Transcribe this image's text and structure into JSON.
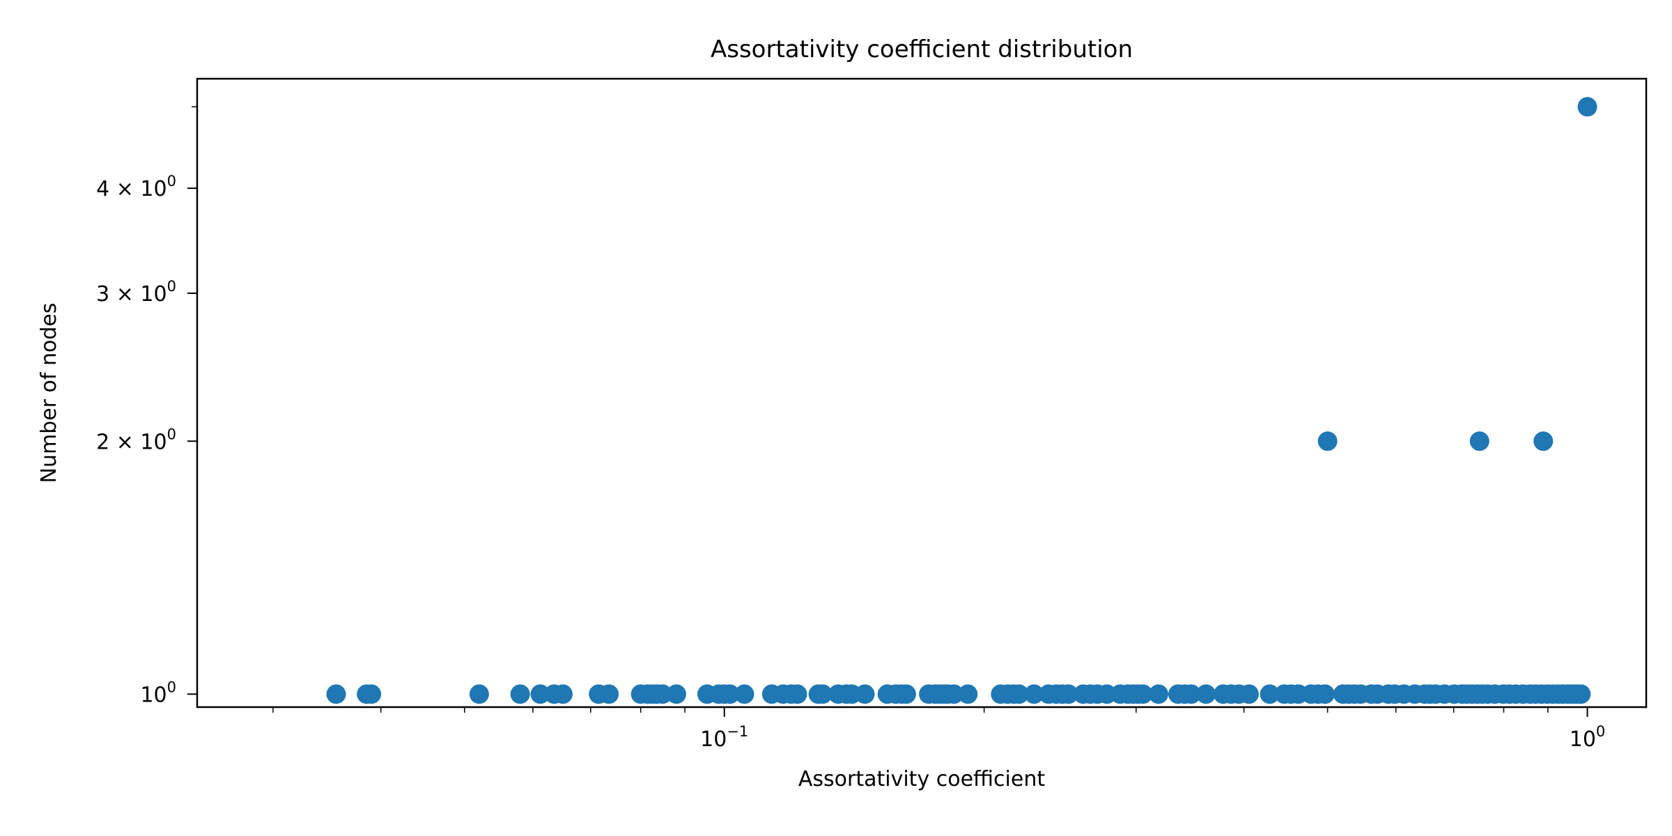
{
  "chart_data": {
    "type": "scatter",
    "title": "Assortativity coefficient distribution",
    "xlabel": "Assortativity coefficient",
    "ylabel": "Number of nodes",
    "xscale": "log",
    "yscale": "log",
    "xlim": [
      0.0245,
      1.17
    ],
    "ylim": [
      0.965,
      5.4
    ],
    "grid": false,
    "marker_color": "#1f77b4",
    "x_ticks": [
      {
        "value": 0.1,
        "base": "10",
        "exp": "−1"
      },
      {
        "value": 1,
        "base": "10",
        "exp": "0"
      }
    ],
    "y_ticks": [
      {
        "value": 1,
        "mant": "",
        "base": "10",
        "exp": "0"
      },
      {
        "value": 2,
        "mant": "2 × ",
        "base": "10",
        "exp": "0"
      },
      {
        "value": 3,
        "mant": "3 × ",
        "base": "10",
        "exp": "0"
      },
      {
        "value": 4,
        "mant": "4 × ",
        "base": "10",
        "exp": "0"
      }
    ],
    "series": [
      {
        "points": [
          [
            0.0355,
            1
          ],
          [
            0.0385,
            1
          ],
          [
            0.039,
            1
          ],
          [
            0.052,
            1
          ],
          [
            0.058,
            1
          ],
          [
            0.0612,
            1
          ],
          [
            0.0635,
            1
          ],
          [
            0.065,
            1
          ],
          [
            0.0715,
            1
          ],
          [
            0.0735,
            1
          ],
          [
            0.08,
            1
          ],
          [
            0.0815,
            1
          ],
          [
            0.0825,
            1
          ],
          [
            0.0835,
            1
          ],
          [
            0.0848,
            1
          ],
          [
            0.088,
            1
          ],
          [
            0.0955,
            1
          ],
          [
            0.0985,
            1
          ],
          [
            0.1,
            1
          ],
          [
            0.1015,
            1
          ],
          [
            0.1055,
            1
          ],
          [
            0.1135,
            1
          ],
          [
            0.117,
            1
          ],
          [
            0.1195,
            1
          ],
          [
            0.1215,
            1
          ],
          [
            0.1285,
            1
          ],
          [
            0.13,
            1
          ],
          [
            0.1355,
            1
          ],
          [
            0.1385,
            1
          ],
          [
            0.1405,
            1
          ],
          [
            0.1455,
            1
          ],
          [
            0.1545,
            1
          ],
          [
            0.158,
            1
          ],
          [
            0.1605,
            1
          ],
          [
            0.1625,
            1
          ],
          [
            0.1725,
            1
          ],
          [
            0.1755,
            1
          ],
          [
            0.1775,
            1
          ],
          [
            0.1795,
            1
          ],
          [
            0.1815,
            1
          ],
          [
            0.1845,
            1
          ],
          [
            0.1915,
            1
          ],
          [
            0.209,
            1
          ],
          [
            0.213,
            1
          ],
          [
            0.2165,
            1
          ],
          [
            0.2195,
            1
          ],
          [
            0.2285,
            1
          ],
          [
            0.2375,
            1
          ],
          [
            0.2425,
            1
          ],
          [
            0.2465,
            1
          ],
          [
            0.2505,
            1
          ],
          [
            0.2605,
            1
          ],
          [
            0.2655,
            1
          ],
          [
            0.2705,
            1
          ],
          [
            0.2775,
            1
          ],
          [
            0.2875,
            1
          ],
          [
            0.2935,
            1
          ],
          [
            0.2975,
            1
          ],
          [
            0.3015,
            1
          ],
          [
            0.3055,
            1
          ],
          [
            0.3185,
            1
          ],
          [
            0.3355,
            1
          ],
          [
            0.3415,
            1
          ],
          [
            0.3475,
            1
          ],
          [
            0.3615,
            1
          ],
          [
            0.3785,
            1
          ],
          [
            0.3865,
            1
          ],
          [
            0.3945,
            1
          ],
          [
            0.4055,
            1
          ],
          [
            0.4285,
            1
          ],
          [
            0.4455,
            1
          ],
          [
            0.4535,
            1
          ],
          [
            0.4625,
            1
          ],
          [
            0.4785,
            1
          ],
          [
            0.4875,
            1
          ],
          [
            0.4965,
            1
          ],
          [
            0.521,
            1
          ],
          [
            0.529,
            1
          ],
          [
            0.537,
            1
          ],
          [
            0.546,
            1
          ],
          [
            0.562,
            1
          ],
          [
            0.571,
            1
          ],
          [
            0.588,
            1
          ],
          [
            0.598,
            1
          ],
          [
            0.613,
            1
          ],
          [
            0.631,
            1
          ],
          [
            0.648,
            1
          ],
          [
            0.657,
            1
          ],
          [
            0.667,
            1
          ],
          [
            0.683,
            1
          ],
          [
            0.701,
            1
          ],
          [
            0.716,
            1
          ],
          [
            0.725,
            1
          ],
          [
            0.735,
            1
          ],
          [
            0.745,
            1
          ],
          [
            0.755,
            1
          ],
          [
            0.766,
            1
          ],
          [
            0.781,
            1
          ],
          [
            0.799,
            1
          ],
          [
            0.812,
            1
          ],
          [
            0.826,
            1
          ],
          [
            0.842,
            1
          ],
          [
            0.858,
            1
          ],
          [
            0.871,
            1
          ],
          [
            0.885,
            1
          ],
          [
            0.899,
            1
          ],
          [
            0.912,
            1
          ],
          [
            0.925,
            1
          ],
          [
            0.936,
            1
          ],
          [
            0.948,
            1
          ],
          [
            0.958,
            1
          ],
          [
            0.967,
            1
          ],
          [
            0.975,
            1
          ],
          [
            0.983,
            1
          ],
          [
            0.5,
            2
          ],
          [
            0.75,
            2
          ],
          [
            0.889,
            2
          ],
          [
            1.0,
            5
          ]
        ]
      }
    ]
  }
}
